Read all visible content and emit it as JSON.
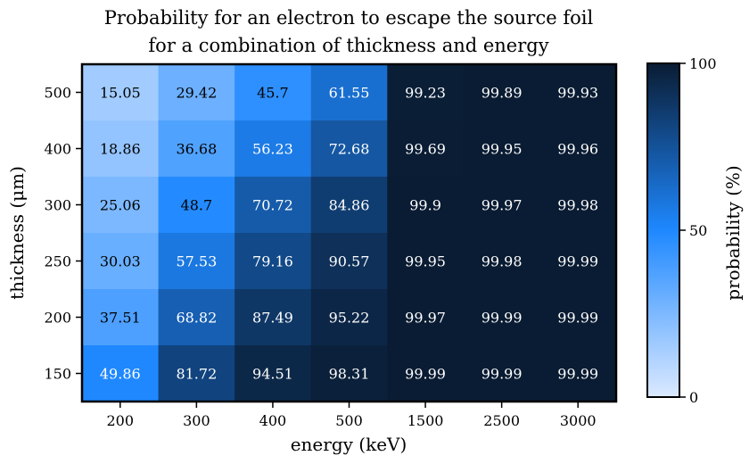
{
  "chart_data": {
    "type": "heatmap",
    "title_lines": [
      "Probability for an electron to escape the source foil",
      "for a combination of thickness and energy"
    ],
    "xlabel": "energy (keV)",
    "ylabel": "thickness (μm)",
    "x_categories": [
      "200",
      "300",
      "400",
      "500",
      "1500",
      "2500",
      "3000"
    ],
    "y_categories": [
      "500",
      "400",
      "300",
      "250",
      "200",
      "150"
    ],
    "values": [
      [
        15.05,
        29.42,
        45.7,
        61.55,
        99.23,
        99.89,
        99.93
      ],
      [
        18.86,
        36.68,
        56.23,
        72.68,
        99.69,
        99.95,
        99.96
      ],
      [
        25.06,
        48.7,
        70.72,
        84.86,
        99.9,
        99.97,
        99.98
      ],
      [
        30.03,
        57.53,
        79.16,
        90.57,
        99.95,
        99.98,
        99.99
      ],
      [
        37.51,
        68.82,
        87.49,
        95.22,
        99.97,
        99.99,
        99.99
      ],
      [
        49.86,
        81.72,
        94.51,
        98.31,
        99.99,
        99.99,
        99.99
      ]
    ],
    "colorbar": {
      "label": "probability (%)",
      "range": [
        0,
        100
      ],
      "ticks": [
        "0",
        "50",
        "100"
      ],
      "colors": {
        "low": "#dbe9ff",
        "mid": "#1e88ff",
        "high": "#0a1c33"
      }
    }
  }
}
